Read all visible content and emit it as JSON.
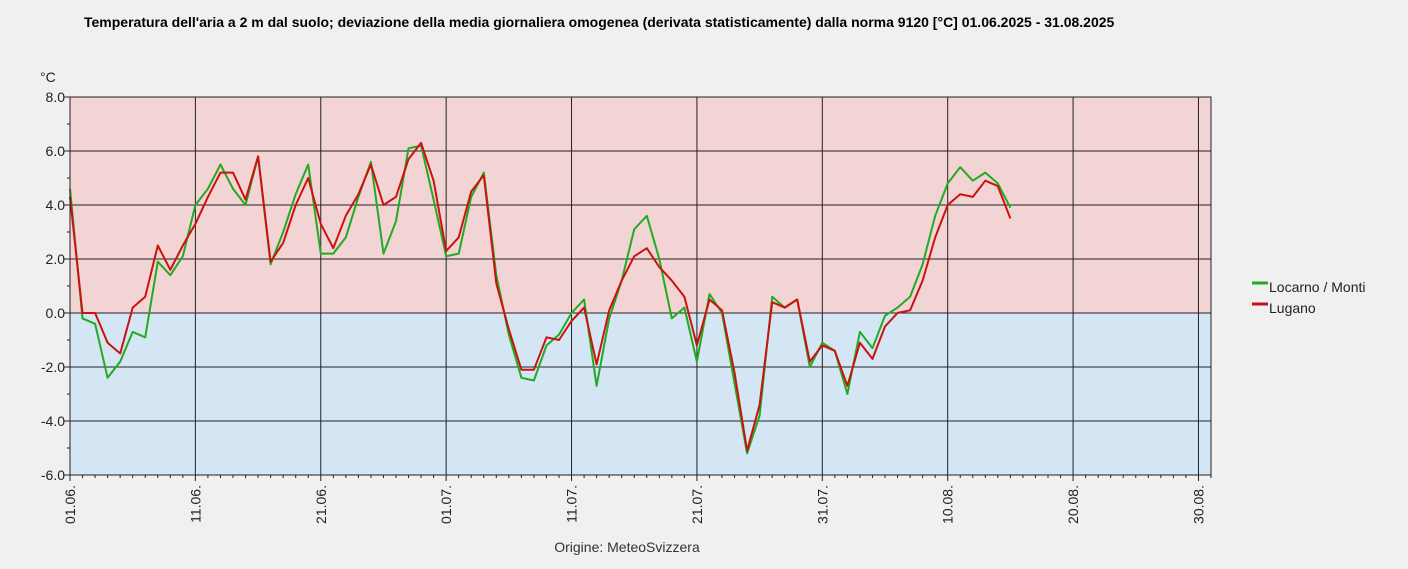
{
  "chart_data": {
    "type": "line",
    "title": "Temperatura dell'aria a 2 m dal suolo; deviazione della media giornaliera omogenea (derivata statisticamente) dalla norma 9120 [°C]  01.06.2025 - 31.08.2025",
    "ylabel": "°C",
    "xlabel": "",
    "source": "Origine: MeteoSvizzera",
    "ylim": [
      -6,
      8
    ],
    "yticks": [
      "-6.0",
      "-4.0",
      "-2.0",
      "0.0",
      "2.0",
      "4.0",
      "6.0",
      "8.0"
    ],
    "xlim": [
      0,
      91
    ],
    "xticks": [
      "01.06.",
      "11.06.",
      "21.06.",
      "01.07.",
      "11.07.",
      "21.07.",
      "31.07.",
      "10.08.",
      "20.08.",
      "30.08."
    ],
    "grid": true,
    "legend_position": "right",
    "band_colors": {
      "positive": "#f3d4d4",
      "negative": "#d4e6f3"
    },
    "series": [
      {
        "name": "Locarno / Monti",
        "color": "#22aa22",
        "values": [
          4.6,
          -0.2,
          -0.4,
          -2.4,
          -1.8,
          -0.7,
          -0.9,
          1.9,
          1.4,
          2.1,
          4.0,
          4.6,
          5.5,
          4.6,
          4.0,
          5.8,
          1.8,
          3.0,
          4.4,
          5.5,
          2.2,
          2.2,
          2.8,
          4.3,
          5.6,
          2.2,
          3.4,
          6.1,
          6.2,
          4.2,
          2.1,
          2.2,
          4.3,
          5.2,
          1.4,
          -0.8,
          -2.4,
          -2.5,
          -1.2,
          -0.8,
          0.0,
          0.5,
          -2.7,
          -0.2,
          1.2,
          3.1,
          3.6,
          2.0,
          -0.2,
          0.2,
          -1.8,
          0.7,
          0.0,
          -2.6,
          -5.2,
          -3.8,
          0.6,
          0.2,
          0.5,
          -2.0,
          -1.1,
          -1.4,
          -3.0,
          -0.7,
          -1.3,
          -0.1,
          0.2,
          0.6,
          1.8,
          3.6,
          4.8,
          5.4,
          4.9,
          5.2,
          4.8,
          3.9
        ]
      },
      {
        "name": "Lugano",
        "color": "#cc1111",
        "values": [
          4.3,
          0.0,
          0.0,
          -1.1,
          -1.5,
          0.2,
          0.6,
          2.5,
          1.6,
          2.5,
          3.3,
          4.3,
          5.2,
          5.2,
          4.2,
          5.8,
          1.9,
          2.6,
          4.0,
          5.0,
          3.3,
          2.4,
          3.6,
          4.4,
          5.5,
          4.0,
          4.3,
          5.7,
          6.3,
          4.9,
          2.3,
          2.8,
          4.5,
          5.1,
          1.1,
          -0.6,
          -2.1,
          -2.1,
          -0.9,
          -1.0,
          -0.3,
          0.2,
          -1.9,
          0.1,
          1.2,
          2.1,
          2.4,
          1.7,
          1.2,
          0.6,
          -1.2,
          0.5,
          0.1,
          -2.2,
          -5.1,
          -3.4,
          0.4,
          0.2,
          0.5,
          -1.8,
          -1.2,
          -1.4,
          -2.7,
          -1.1,
          -1.7,
          -0.5,
          0.0,
          0.1,
          1.2,
          2.8,
          4.0,
          4.4,
          4.3,
          4.9,
          4.7,
          3.5
        ]
      }
    ]
  }
}
